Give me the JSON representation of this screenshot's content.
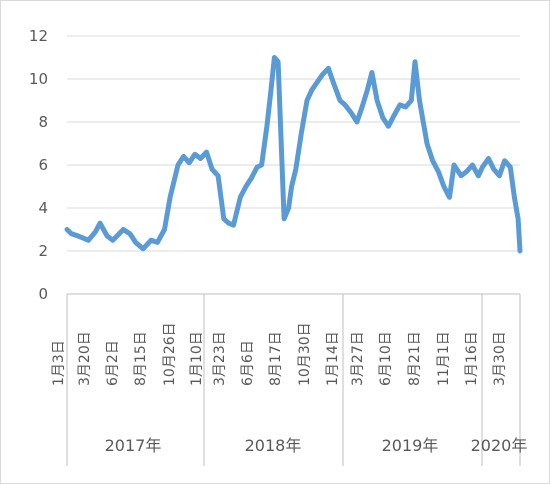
{
  "chart_data": {
    "type": "line",
    "title": "",
    "xlabel": "",
    "ylabel": "",
    "ylim": [
      0,
      12
    ],
    "yticks": [
      0,
      2,
      4,
      6,
      8,
      10,
      12
    ],
    "grid": true,
    "legend": "none",
    "color": "#5b9bd5",
    "x_tick_labels": [
      "1月3日",
      "3月20日",
      "6月2日",
      "8月15日",
      "10月26日",
      "1月10日",
      "3月23日",
      "6月6日",
      "8月17日",
      "10月30日",
      "1月14日",
      "3月27日",
      "6月10日",
      "8月21日",
      "11月1日",
      "1月16日",
      "3月30日"
    ],
    "year_groups": [
      {
        "label": "2017年"
      },
      {
        "label": "2018年"
      },
      {
        "label": "2019年"
      },
      {
        "label": "2020年"
      }
    ],
    "series": [
      {
        "x": [
          "2017-01-03",
          "2017-01-15",
          "2017-02-01",
          "2017-02-15",
          "2017-03-01",
          "2017-03-20",
          "2017-04-01",
          "2017-04-20",
          "2017-05-05",
          "2017-06-02",
          "2017-06-20",
          "2017-07-05",
          "2017-07-25",
          "2017-08-15",
          "2017-09-01",
          "2017-09-20",
          "2017-10-05",
          "2017-10-26",
          "2017-11-10",
          "2017-11-25",
          "2017-12-10",
          "2017-12-25",
          "2018-01-10",
          "2018-01-25",
          "2018-02-10",
          "2018-02-25",
          "2018-03-10",
          "2018-03-23",
          "2018-04-10",
          "2018-04-25",
          "2018-05-10",
          "2018-05-25",
          "2018-06-06",
          "2018-06-20",
          "2018-07-01",
          "2018-07-10",
          "2018-07-20",
          "2018-07-25",
          "2018-08-05",
          "2018-08-17",
          "2018-08-25",
          "2018-09-05",
          "2018-09-20",
          "2018-10-05",
          "2018-10-18",
          "2018-10-30",
          "2018-11-15",
          "2018-12-01",
          "2018-12-15",
          "2019-01-01",
          "2019-01-14",
          "2019-02-01",
          "2019-02-15",
          "2019-03-01",
          "2019-03-15",
          "2019-03-27",
          "2019-04-10",
          "2019-04-25",
          "2019-05-10",
          "2019-05-25",
          "2019-06-10",
          "2019-06-25",
          "2019-07-10",
          "2019-07-20",
          "2019-08-01",
          "2019-08-21",
          "2019-09-05",
          "2019-09-20",
          "2019-10-05",
          "2019-10-20",
          "2019-11-01",
          "2019-11-20",
          "2019-12-05",
          "2019-12-20",
          "2020-01-05",
          "2020-01-16",
          "2020-02-01",
          "2020-02-15",
          "2020-03-01",
          "2020-03-15",
          "2020-03-30",
          "2020-04-10",
          "2020-04-20",
          "2020-04-25"
        ],
        "y": [
          3.0,
          2.8,
          2.7,
          2.6,
          2.5,
          2.9,
          3.3,
          2.7,
          2.5,
          3.0,
          2.8,
          2.4,
          2.1,
          2.5,
          2.4,
          3.0,
          4.5,
          6.0,
          6.4,
          6.1,
          6.5,
          6.3,
          6.6,
          5.8,
          5.5,
          3.5,
          3.3,
          3.2,
          4.5,
          5.0,
          5.4,
          5.9,
          6.0,
          7.8,
          9.5,
          11.0,
          10.8,
          8.5,
          3.5,
          4.0,
          5.0,
          5.8,
          7.5,
          9.0,
          9.5,
          9.8,
          10.2,
          10.5,
          9.8,
          9.0,
          8.8,
          8.4,
          8.0,
          8.7,
          9.5,
          10.3,
          9.0,
          8.2,
          7.8,
          8.3,
          8.8,
          8.7,
          9.0,
          10.8,
          9.0,
          7.0,
          6.2,
          5.7,
          5.0,
          4.5,
          6.0,
          5.5,
          5.7,
          6.0,
          5.5,
          5.9,
          6.3,
          5.8,
          5.5,
          6.2,
          5.9,
          4.5,
          3.5,
          2.0
        ]
      }
    ]
  }
}
